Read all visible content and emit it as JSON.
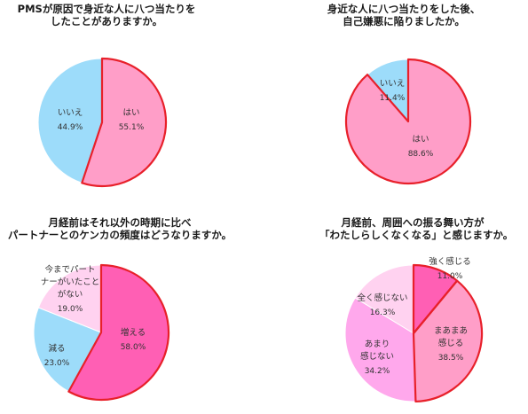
{
  "chart_data": [
    {
      "type": "pie",
      "title": [
        "PMSが原因で身近な人に八つ当たりを",
        "したことがありますか。"
      ],
      "slices": [
        {
          "label": [
            "はい"
          ],
          "value": 55.1,
          "pct": "55.1%",
          "color": "#ff9ec8"
        },
        {
          "label": [
            "いいえ"
          ],
          "value": 44.9,
          "pct": "44.9%",
          "color": "#9ddcfa"
        }
      ],
      "highlight": 0,
      "highlight_color": "#e8202a"
    },
    {
      "type": "pie",
      "title": [
        "身近な人に八つ当たりをした後、",
        "自己嫌悪に陥りましたか。"
      ],
      "slices": [
        {
          "label": [
            "はい"
          ],
          "value": 88.6,
          "pct": "88.6%",
          "color": "#ff9ec8"
        },
        {
          "label": [
            "いいえ"
          ],
          "value": 11.4,
          "pct": "11.4%",
          "color": "#9ddcfa"
        }
      ],
      "highlight": 0,
      "highlight_color": "#e8202a"
    },
    {
      "type": "pie",
      "title": [
        "月経前はそれ以外の時期に比べ",
        "パートナーとのケンカの頻度はどうなりますか。"
      ],
      "slices": [
        {
          "label": [
            "増える"
          ],
          "value": 58.0,
          "pct": "58.0%",
          "color": "#ff5fb4"
        },
        {
          "label": [
            "減る"
          ],
          "value": 23.0,
          "pct": "23.0%",
          "color": "#9ddcfa"
        },
        {
          "label": [
            "今までパート",
            "ナーがいたこと",
            "がない"
          ],
          "value": 19.0,
          "pct": "19.0%",
          "color": "#ffd2f0"
        }
      ],
      "highlight": 0,
      "highlight_color": "#e8202a"
    },
    {
      "type": "pie",
      "title": [
        "月経前、周囲への振る舞い方が",
        "「わたしらしくなくなる」と感じますか。"
      ],
      "slices": [
        {
          "label": [
            "強く感じる"
          ],
          "value": 11.0,
          "pct": "11.0%",
          "color": "#ff5fb4"
        },
        {
          "label": [
            "まあまあ",
            "感じる"
          ],
          "value": 38.5,
          "pct": "38.5%",
          "color": "#ff9ec8"
        },
        {
          "label": [
            "あまり",
            "感じない"
          ],
          "value": 34.2,
          "pct": "34.2%",
          "color": "#ffa8ec"
        },
        {
          "label": [
            "全く感じない"
          ],
          "value": 16.3,
          "pct": "16.3%",
          "color": "#ffd2f0"
        }
      ],
      "highlight": [
        0,
        1
      ],
      "highlight_color": "#e8202a"
    }
  ]
}
